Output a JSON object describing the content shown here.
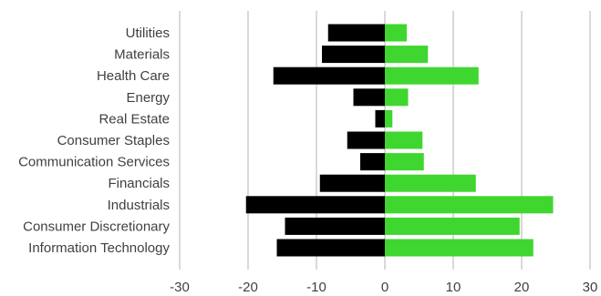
{
  "chart_data": {
    "type": "bar",
    "orientation": "horizontal",
    "categories": [
      "Utilities",
      "Materials",
      "Health Care",
      "Energy",
      "Real Estate",
      "Consumer Staples",
      "Communication Services",
      "Financials",
      "Industrials",
      "Consumer Discretionary",
      "Information Technology"
    ],
    "series": [
      {
        "values": [
          -8.3,
          -9.2,
          -16.3,
          -4.6,
          -1.4,
          -5.5,
          -3.6,
          -9.5,
          -20.3,
          -14.6,
          -15.8
        ],
        "color": "#000000"
      },
      {
        "values": [
          3.2,
          6.3,
          13.7,
          3.4,
          1.1,
          5.5,
          5.7,
          13.3,
          24.6,
          19.7,
          21.7
        ],
        "color": "#3fd62f"
      }
    ],
    "xlim": [
      -30,
      30
    ],
    "xticks": [
      -30,
      -20,
      -10,
      0,
      10,
      20,
      30
    ],
    "xtick_labels": [
      "-30",
      "-20",
      "-10",
      "0",
      "10",
      "20",
      "30"
    ],
    "grid": "vertical",
    "gridline_color": "#d9d9d9",
    "legend": "none",
    "title": "",
    "xlabel": "",
    "ylabel": ""
  }
}
